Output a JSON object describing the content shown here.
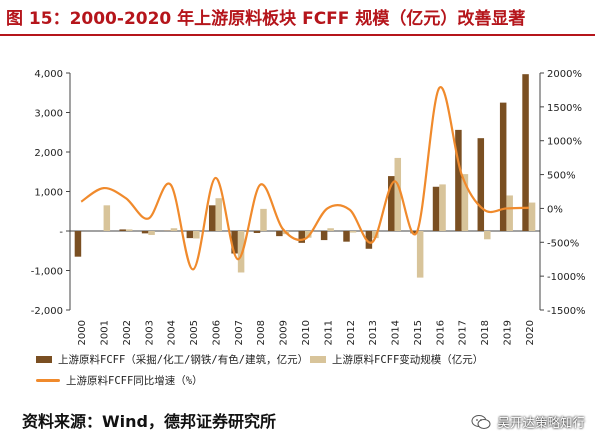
{
  "title": "图 15：2000-2020 年上游原料板块 FCFF 规模（亿元）改善显著",
  "colors": {
    "title": "#b5151b",
    "bar_main": "#7a4f22",
    "bar_change": "#d8c49a",
    "line": "#f08a2c",
    "axis": "#444444"
  },
  "source": "资料来源：Wind，德邦证券研究所",
  "watermark": {
    "text": "吴开达策略知行",
    "icon": "wechat-icon"
  },
  "chart_data": {
    "type": "bar",
    "categories": [
      "2000",
      "2001",
      "2002",
      "2003",
      "2004",
      "2005",
      "2006",
      "2007",
      "2008",
      "2009",
      "2010",
      "2011",
      "2012",
      "2013",
      "2014",
      "2015",
      "2016",
      "2017",
      "2018",
      "2019",
      "2020"
    ],
    "series": [
      {
        "name": "上游原料FCFF（采掘/化工/钢铁/有色/建筑，亿元）",
        "kind": "bar",
        "axis": "left",
        "values": [
          -650,
          0,
          40,
          -60,
          10,
          -180,
          650,
          -570,
          -50,
          -130,
          -300,
          -230,
          -270,
          -450,
          1390,
          -60,
          1120,
          2560,
          2350,
          3250,
          3970
        ]
      },
      {
        "name": "上游原料FCFF变动规模（亿元）",
        "kind": "bar",
        "axis": "left",
        "values": [
          0,
          650,
          40,
          -100,
          70,
          -190,
          830,
          -1050,
          560,
          -80,
          -170,
          70,
          -40,
          -180,
          1850,
          -1180,
          1180,
          1440,
          -210,
          900,
          720
        ]
      },
      {
        "name": "上游原料FCFF同比增速（%）",
        "kind": "line",
        "axis": "right",
        "values": [
          100,
          300,
          150,
          -150,
          350,
          -900,
          450,
          -750,
          350,
          -300,
          -450,
          0,
          -20,
          -500,
          400,
          -350,
          1780,
          500,
          -20,
          0,
          10
        ]
      }
    ],
    "y_left": {
      "min": -2000,
      "max": 4000,
      "ticks": [
        "4,000",
        "3,000",
        "2,000",
        "1,000",
        "-",
        "-1,000",
        "-2,000"
      ]
    },
    "y_right": {
      "min": -1500,
      "max": 2000,
      "ticks": [
        "2000%",
        "1500%",
        "1000%",
        "500%",
        "0%",
        "-500%",
        "-1000%",
        "-1500%"
      ]
    }
  }
}
